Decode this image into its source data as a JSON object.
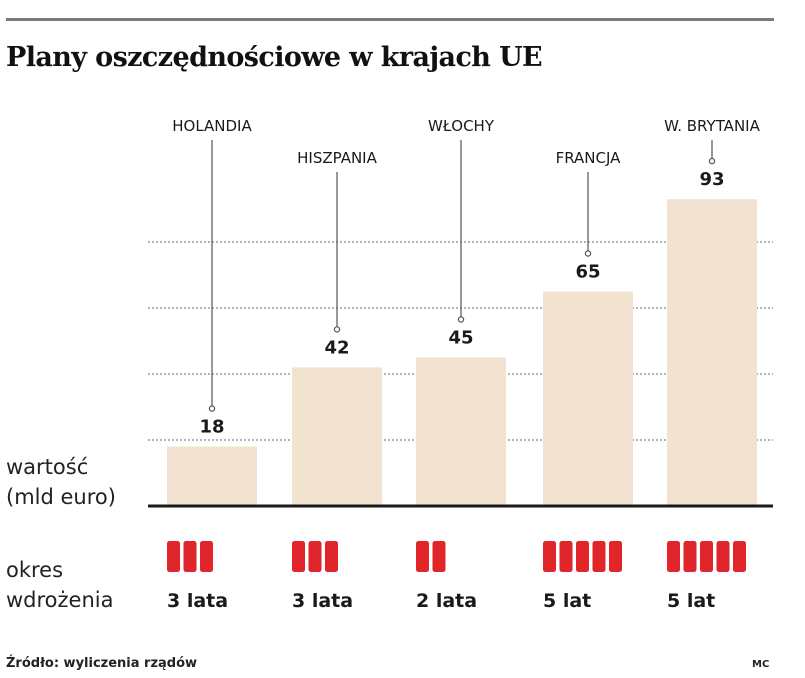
{
  "title": "Plany oszczędnościowe w krajach UE",
  "y_axis_label_line1": "wartość",
  "y_axis_label_line2": "(mld euro)",
  "period_label_line1": "okres",
  "period_label_line2": "wdrożenia",
  "footer": {
    "source": "Źródło:  wyliczenia rządów",
    "credit": "MC"
  },
  "colors": {
    "bar": "#f1e3cf",
    "period_block": "#e0262b",
    "baseline": "#1a1a1a",
    "gridline": "#888888",
    "rule": "#7a7a7a"
  },
  "chart_data": {
    "type": "bar",
    "title": "Plany oszczędnościowe w krajach UE",
    "ylabel": "wartość (mld euro)",
    "xlabel": "",
    "categories": [
      "HOLANDIA",
      "HISZPANIA",
      "WŁOCHY",
      "FRANCJA",
      "W. BRYTANIA"
    ],
    "values": [
      18,
      42,
      45,
      65,
      93
    ],
    "value_labels": [
      "18",
      "42",
      "45",
      "65",
      "93"
    ],
    "ylim": [
      0,
      100
    ],
    "grid": true,
    "gridlines_at": [
      20,
      40,
      60,
      80
    ],
    "implementation_years": [
      3,
      3,
      2,
      5,
      5
    ],
    "implementation_labels": [
      "3 lata",
      "3 lata",
      "2 lata",
      "5 lat",
      "5 lat"
    ]
  }
}
